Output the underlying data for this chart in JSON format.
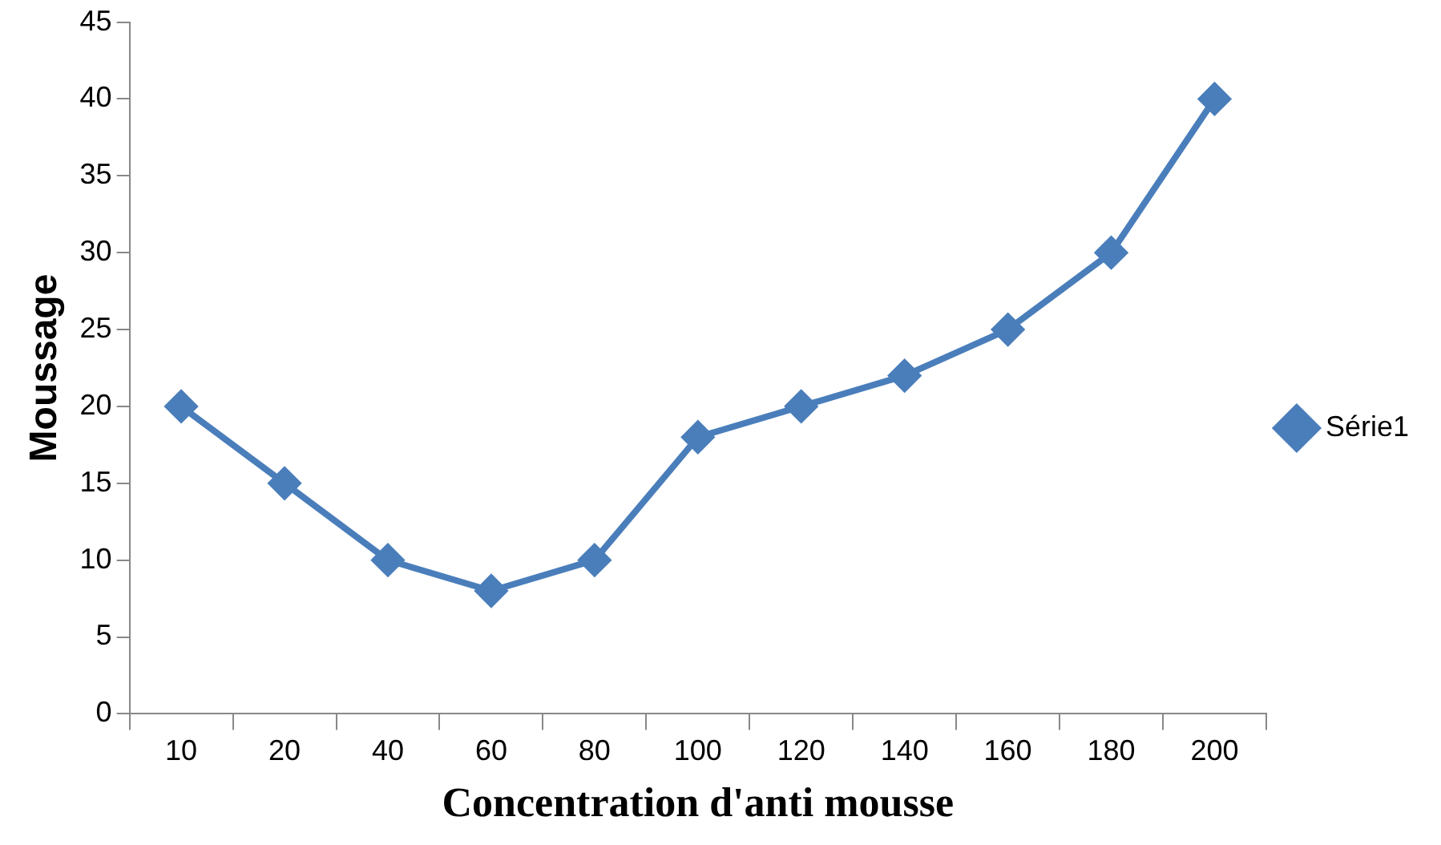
{
  "chart_data": {
    "type": "line",
    "xlabel": "Concentration d'anti mousse",
    "ylabel": "Moussage",
    "categories": [
      "10",
      "20",
      "40",
      "60",
      "80",
      "100",
      "120",
      "140",
      "160",
      "180",
      "200"
    ],
    "series": [
      {
        "name": "Série1",
        "color": "#4a7ebb",
        "values": [
          20,
          15,
          10,
          8,
          10,
          18,
          20,
          22,
          25,
          30,
          40
        ]
      }
    ],
    "ylim": [
      0,
      45
    ],
    "yticks": [
      0,
      5,
      10,
      15,
      20,
      25,
      30,
      35,
      40,
      45
    ],
    "grid": false,
    "legend": "right",
    "marker": "diamond",
    "line_style": "solid"
  }
}
